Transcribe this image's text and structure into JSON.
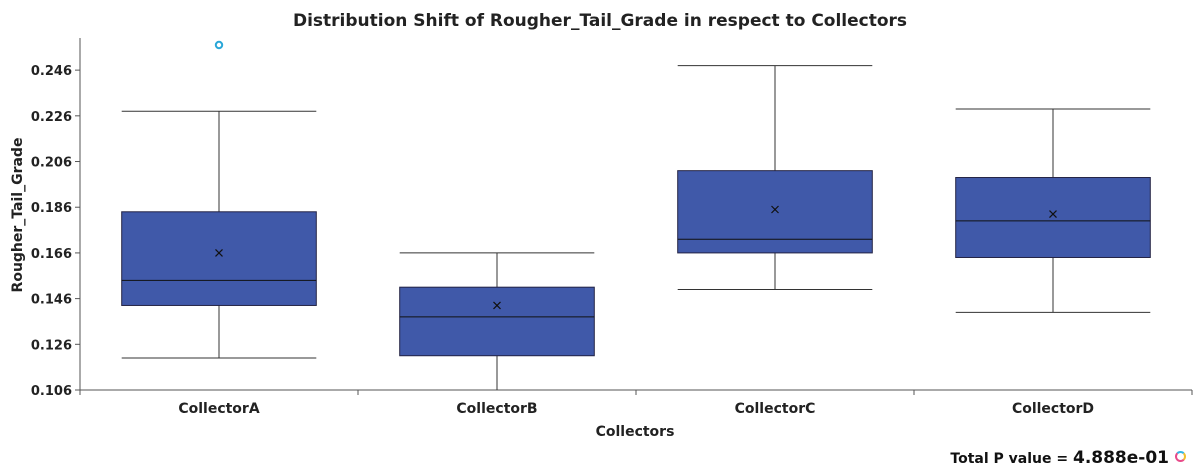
{
  "colors": {
    "box_fill": "#4059a9",
    "box_stroke": "#222244",
    "whisker": "#333333",
    "axis": "#555555",
    "outlier": "#2aa7d8"
  },
  "footer": {
    "label": "Total P value = ",
    "value": "4.888e-01"
  },
  "chart_data": {
    "type": "box",
    "title": "Distribution Shift of Rougher_Tail_Grade in respect to Collectors",
    "xlabel": "Collectors",
    "ylabel": "Rougher_Tail_Grade",
    "ylim": [
      0.106,
      0.257
    ],
    "yticks": [
      0.106,
      0.126,
      0.146,
      0.166,
      0.186,
      0.206,
      0.226,
      0.246
    ],
    "ytick_labels": [
      "0.106",
      "0.126",
      "0.146",
      "0.166",
      "0.186",
      "0.206",
      "0.226",
      "0.246"
    ],
    "grid": false,
    "categories": [
      "CollectorA",
      "CollectorB",
      "CollectorC",
      "CollectorD"
    ],
    "boxes": [
      {
        "category": "CollectorA",
        "min": 0.12,
        "q1": 0.143,
        "median": 0.154,
        "q3": 0.184,
        "max": 0.228,
        "mean": 0.166,
        "outliers": [
          0.257
        ]
      },
      {
        "category": "CollectorB",
        "min": 0.106,
        "q1": 0.121,
        "median": 0.138,
        "q3": 0.151,
        "max": 0.166,
        "mean": 0.143,
        "outliers": []
      },
      {
        "category": "CollectorC",
        "min": 0.15,
        "q1": 0.166,
        "median": 0.172,
        "q3": 0.202,
        "max": 0.248,
        "mean": 0.185,
        "outliers": []
      },
      {
        "category": "CollectorD",
        "min": 0.14,
        "q1": 0.164,
        "median": 0.18,
        "q3": 0.199,
        "max": 0.229,
        "mean": 0.183,
        "outliers": []
      }
    ]
  }
}
